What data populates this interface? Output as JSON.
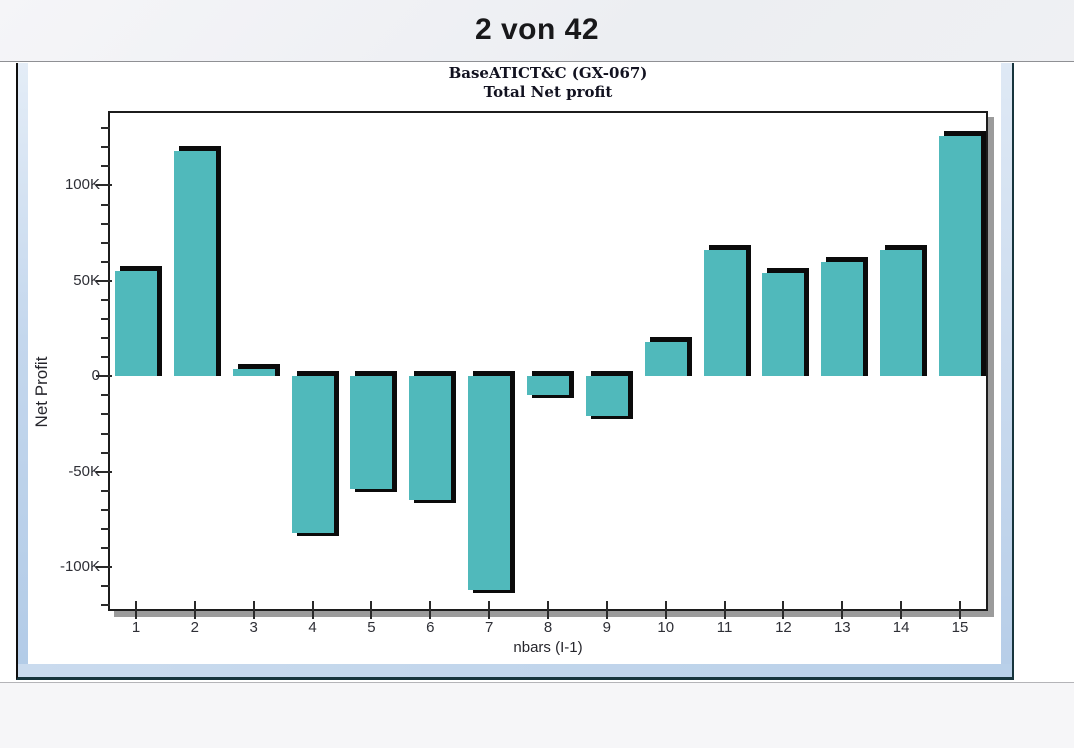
{
  "header": {
    "page_indicator": "2 von 42"
  },
  "chart_data": {
    "type": "bar",
    "title": "BaseATICT&C (GX-067)",
    "subtitle": "Total Net profit",
    "xlabel": "nbars (I-1)",
    "ylabel": "Net Profit",
    "categories": [
      "1",
      "2",
      "3",
      "4",
      "5",
      "6",
      "7",
      "8",
      "9",
      "10",
      "11",
      "12",
      "13",
      "14",
      "15"
    ],
    "values": [
      55000,
      118000,
      4000,
      -82000,
      -59000,
      -65000,
      -112000,
      -10000,
      -21000,
      18000,
      66000,
      54000,
      60000,
      66000,
      126000
    ],
    "ylim": [
      -123000,
      139000
    ],
    "ytick_step": 50000,
    "ytick_minor_step": 10000,
    "ytick_labels": [
      "-100K",
      "-50K",
      "0",
      "50K",
      "100K"
    ],
    "grid": false,
    "legend": "none",
    "bar_color": "#50b9bb",
    "bar_edge_color": "#0b0b0b",
    "frame_shadow_color": "#9b9b9b"
  }
}
